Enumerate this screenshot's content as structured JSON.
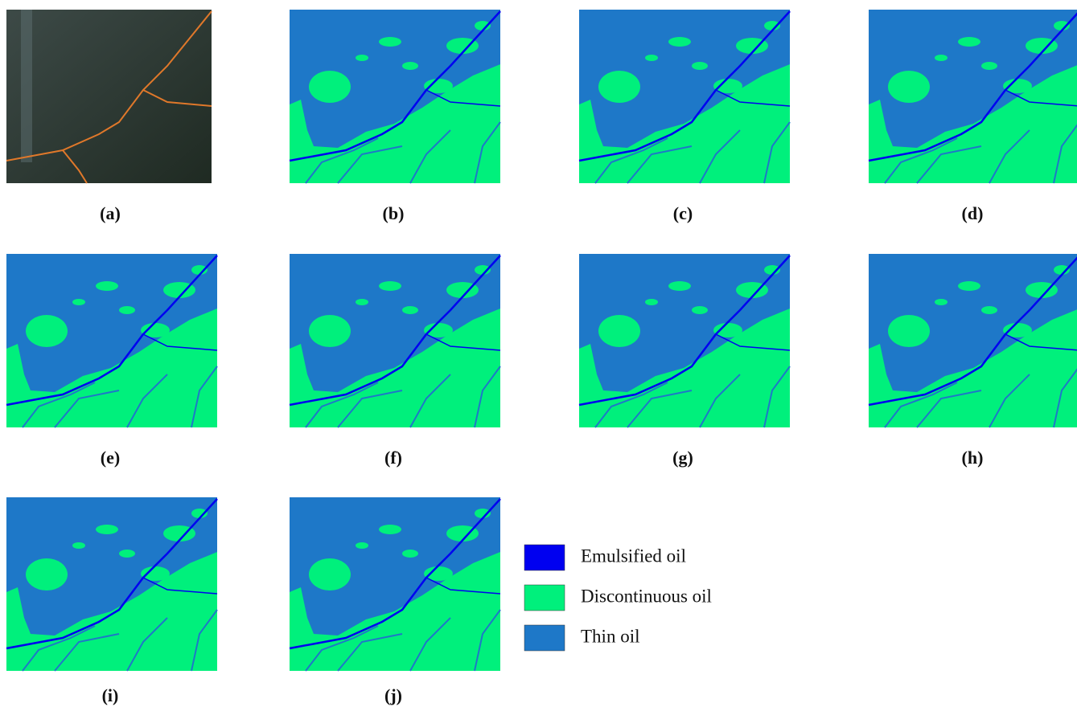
{
  "panels": [
    {
      "label": "(a)"
    },
    {
      "label": "(b)"
    },
    {
      "label": "(c)"
    },
    {
      "label": "(d)"
    },
    {
      "label": "(e)"
    },
    {
      "label": "(f)"
    },
    {
      "label": "(g)"
    },
    {
      "label": "(h)"
    },
    {
      "label": "(i)"
    },
    {
      "label": "(j)"
    }
  ],
  "legend": [
    {
      "name": "Emulsified oil",
      "color": "#0000f0"
    },
    {
      "name": "Discontinuous oil",
      "color": "#00f07c"
    },
    {
      "name": "Thin oil",
      "color": "#1e78c8"
    }
  ]
}
